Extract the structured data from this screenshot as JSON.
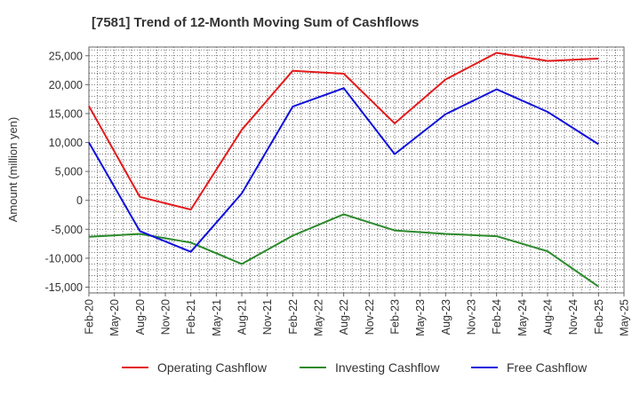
{
  "chart_data": {
    "type": "line",
    "title": "[7581]  Trend of 12-Month Moving Sum of Cashflows",
    "xlabel": "",
    "ylabel": "Amount (million yen)",
    "ylim": [
      -16000,
      26500
    ],
    "yticks": [
      -15000,
      -10000,
      -5000,
      0,
      5000,
      10000,
      15000,
      20000,
      25000
    ],
    "ytick_labels": [
      "-15,000",
      "-10,000",
      "-5,000",
      "0",
      "5,000",
      "10,000",
      "15,000",
      "20,000",
      "25,000"
    ],
    "x_ticks": [
      "Feb-20",
      "May-20",
      "Aug-20",
      "Nov-20",
      "Feb-21",
      "May-21",
      "Aug-21",
      "Nov-21",
      "Feb-22",
      "May-22",
      "Aug-22",
      "Nov-22",
      "Feb-23",
      "May-23",
      "Aug-23",
      "Nov-23",
      "Feb-24",
      "May-24",
      "Aug-24",
      "Nov-24",
      "Feb-25",
      "May-25"
    ],
    "x": [
      "Feb-20",
      "Aug-20",
      "Feb-21",
      "Aug-21",
      "Feb-22",
      "Aug-22",
      "Feb-23",
      "Aug-23",
      "Feb-24",
      "Aug-24",
      "Feb-25"
    ],
    "grid": true,
    "legend_position": "bottom",
    "series": [
      {
        "name": "Operating Cashflow",
        "color": "#e41a1c",
        "values": [
          16300,
          600,
          -1600,
          12200,
          22400,
          21900,
          13300,
          20900,
          25500,
          24100,
          24500
        ]
      },
      {
        "name": "Investing Cashflow",
        "color": "#2b8a2b",
        "values": [
          -6300,
          -5800,
          -7300,
          -11000,
          -6100,
          -2400,
          -5200,
          -5800,
          -6200,
          -8800,
          -14900
        ]
      },
      {
        "name": "Free Cashflow",
        "color": "#1010dd",
        "values": [
          10000,
          -5300,
          -8900,
          1200,
          16200,
          19400,
          8000,
          14900,
          19200,
          15300,
          9700
        ]
      }
    ]
  }
}
